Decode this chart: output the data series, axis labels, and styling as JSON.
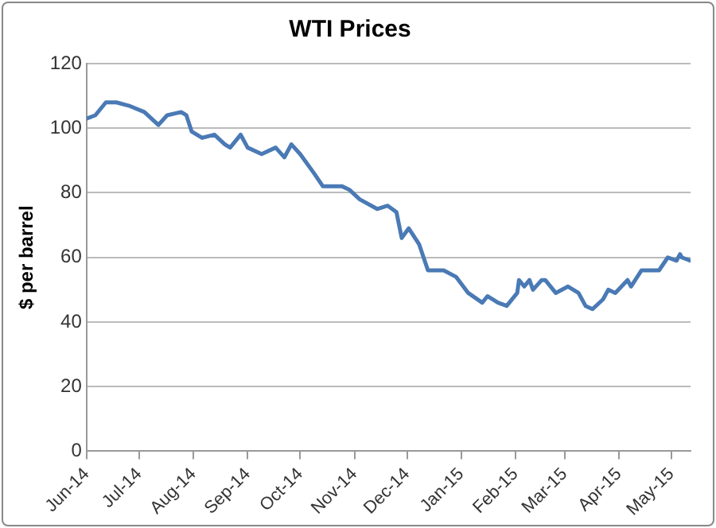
{
  "chart_data": {
    "type": "line",
    "title": "WTI Prices",
    "ylabel": "$ per barrel",
    "x": [
      "2014-06-01",
      "2014-06-06",
      "2014-06-12",
      "2014-06-18",
      "2014-06-25",
      "2014-07-04",
      "2014-07-12",
      "2014-07-17",
      "2014-07-25",
      "2014-07-28",
      "2014-07-31",
      "2014-08-06",
      "2014-08-13",
      "2014-08-19",
      "2014-08-22",
      "2014-08-28",
      "2014-09-01",
      "2014-09-09",
      "2014-09-17",
      "2014-09-22",
      "2014-09-26",
      "2014-10-01",
      "2014-10-09",
      "2014-10-14",
      "2014-10-25",
      "2014-10-29",
      "2014-11-04",
      "2014-11-14",
      "2014-11-20",
      "2014-11-25",
      "2014-11-28",
      "2014-12-02",
      "2014-12-08",
      "2014-12-13",
      "2014-12-18",
      "2014-12-22",
      "2014-12-29",
      "2015-01-05",
      "2015-01-13",
      "2015-01-16",
      "2015-01-22",
      "2015-01-27",
      "2015-02-02",
      "2015-02-03",
      "2015-02-06",
      "2015-02-09",
      "2015-02-11",
      "2015-02-16",
      "2015-02-18",
      "2015-02-24",
      "2015-03-03",
      "2015-03-09",
      "2015-03-13",
      "2015-03-17",
      "2015-03-23",
      "2015-03-26",
      "2015-03-30",
      "2015-04-06",
      "2015-04-08",
      "2015-04-14",
      "2015-04-24",
      "2015-04-29",
      "2015-05-04",
      "2015-05-06",
      "2015-05-07",
      "2015-05-12"
    ],
    "series": [
      {
        "color": "#4a7ab5",
        "values": [
          103,
          104,
          108,
          108,
          107,
          105,
          101,
          104,
          105,
          104,
          99,
          97,
          98,
          95,
          94,
          98,
          94,
          92,
          94,
          91,
          95,
          92,
          86,
          82,
          82,
          81,
          78,
          75,
          76,
          74,
          66,
          69,
          64,
          56,
          56,
          56,
          54,
          49,
          46,
          48,
          46,
          45,
          49,
          53,
          51,
          53,
          50,
          53,
          53,
          49,
          51,
          49,
          45,
          44,
          47,
          50,
          49,
          53,
          51,
          56,
          56,
          60,
          59,
          61,
          60,
          59
        ]
      }
    ],
    "xlim": [
      "2014-06-01",
      "2015-05-12"
    ],
    "xticks": [
      {
        "value": "2014-06-01",
        "label": "Jun-14"
      },
      {
        "value": "2014-07-01",
        "label": "Jul-14"
      },
      {
        "value": "2014-08-01",
        "label": "Aug-14"
      },
      {
        "value": "2014-09-01",
        "label": "Sep-14"
      },
      {
        "value": "2014-10-01",
        "label": "Oct-14"
      },
      {
        "value": "2014-11-01",
        "label": "Nov-14"
      },
      {
        "value": "2014-12-01",
        "label": "Dec-14"
      },
      {
        "value": "2015-01-01",
        "label": "Jan-15"
      },
      {
        "value": "2015-02-01",
        "label": "Feb-15"
      },
      {
        "value": "2015-03-01",
        "label": "Mar-15"
      },
      {
        "value": "2015-04-01",
        "label": "Apr-15"
      },
      {
        "value": "2015-05-01",
        "label": "May-15"
      }
    ],
    "ylim": [
      0,
      120
    ],
    "yticks": [
      0,
      20,
      40,
      60,
      80,
      100,
      120
    ],
    "grid": "y",
    "legend": false,
    "marker": "none",
    "line_style": "solid"
  }
}
